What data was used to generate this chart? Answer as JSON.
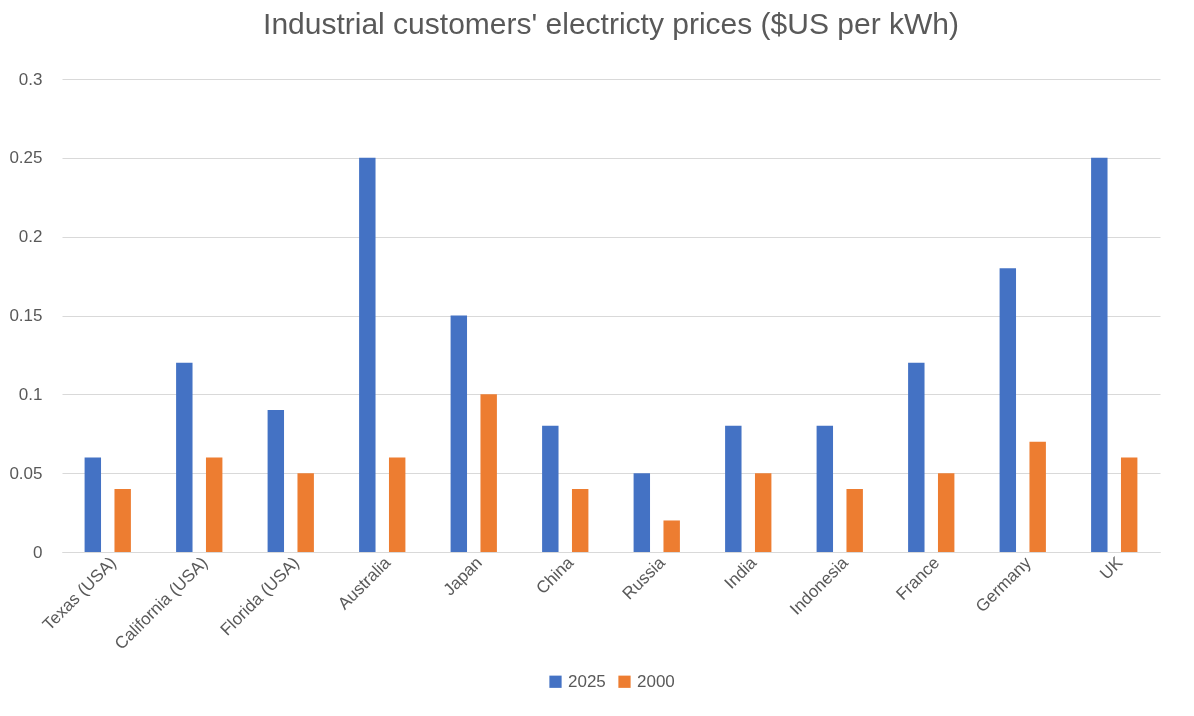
{
  "chart_data": {
    "type": "bar",
    "title": "Industrial customers' electricty prices ($US per kWh)",
    "categories": [
      "Texas (USA)",
      "California (USA)",
      "Florida (USA)",
      "Australia",
      "Japan",
      "China",
      "Russia",
      "India",
      "Indonesia",
      "France",
      "Germany",
      "UK"
    ],
    "series": [
      {
        "name": "2025",
        "color": "#4472c4",
        "values": [
          0.06,
          0.12,
          0.09,
          0.25,
          0.15,
          0.08,
          0.05,
          0.08,
          0.08,
          0.12,
          0.18,
          0.25
        ]
      },
      {
        "name": "2000",
        "color": "#ed7d31",
        "values": [
          0.04,
          0.06,
          0.05,
          0.06,
          0.1,
          0.04,
          0.02,
          0.05,
          0.04,
          0.05,
          0.07,
          0.06
        ]
      }
    ],
    "ylim": [
      0,
      0.3
    ],
    "yticks": [
      0,
      0.05,
      0.1,
      0.15,
      0.2,
      0.25,
      0.3
    ],
    "grid": "y",
    "legend": "bottom"
  }
}
